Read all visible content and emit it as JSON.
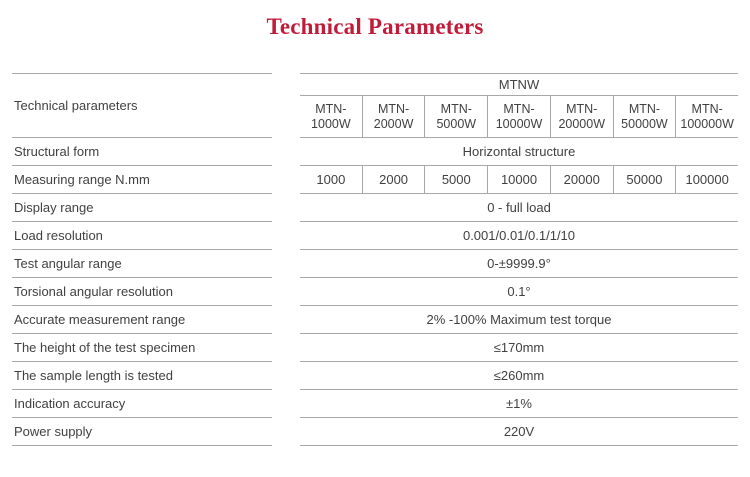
{
  "page": {
    "title": "Technical Parameters"
  },
  "table": {
    "header": {
      "left_label": "Technical parameters",
      "group_label": "MTNW",
      "models": [
        "MTN-1000W",
        "MTN-2000W",
        "MTN-5000W",
        "MTN-10000W",
        "MTN-20000W",
        "MTN-50000W",
        "MTN-100000W"
      ]
    },
    "rows": [
      {
        "label": "Structural form",
        "value": "Horizontal structure"
      },
      {
        "label": "Measuring range N.mm",
        "values": [
          "1000",
          "2000",
          "5000",
          "10000",
          "20000",
          "50000",
          "100000"
        ]
      },
      {
        "label": "Display range",
        "value": "0 - full load"
      },
      {
        "label": "Load resolution",
        "value": "0.001/0.01/0.1/1/10"
      },
      {
        "label": "Test angular range",
        "value": "0-±9999.9°"
      },
      {
        "label": "Torsional angular resolution",
        "value": "0.1°"
      },
      {
        "label": "Accurate measurement range",
        "value": "2% -100% Maximum test torque"
      },
      {
        "label": "The height of the test specimen",
        "value": "≤170mm"
      },
      {
        "label": "The sample length is tested",
        "value": "≤260mm"
      },
      {
        "label": "Indication accuracy",
        "value": "±1%"
      },
      {
        "label": "Power supply",
        "value": "220V"
      }
    ]
  },
  "colors": {
    "title": "#c01c3a",
    "text": "#414141",
    "line": "#a7a7a7",
    "background": "#ffffff"
  }
}
